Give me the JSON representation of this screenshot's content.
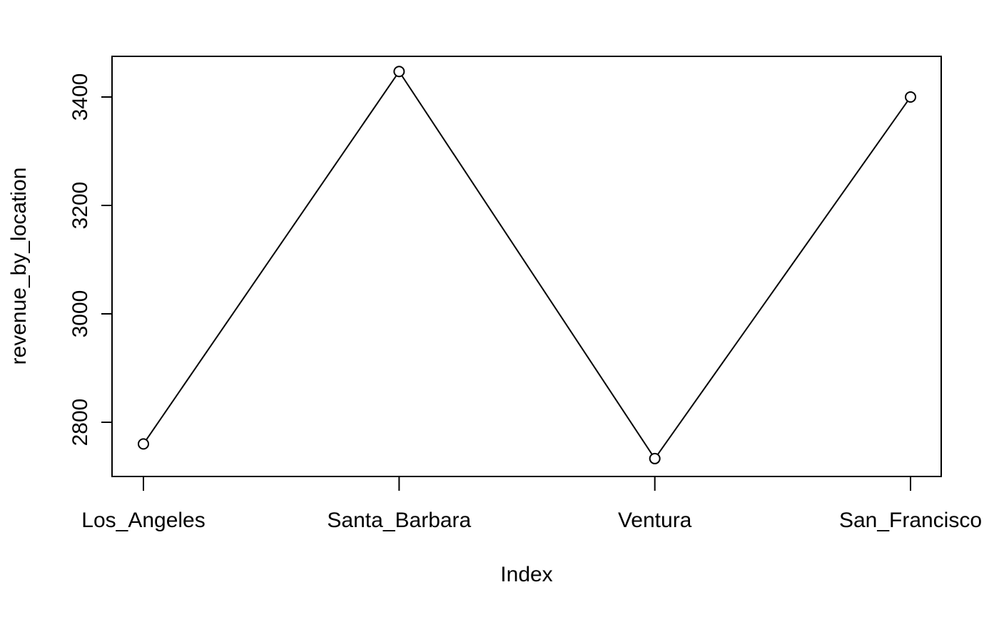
{
  "chart_data": {
    "type": "line",
    "title": "",
    "xlabel": "Index",
    "ylabel": "revenue_by_location",
    "categories": [
      "Los_Angeles",
      "Santa_Barbara",
      "Ventura",
      "San_Francisco"
    ],
    "series": [
      {
        "values": [
          2760,
          3447,
          2733,
          3400
        ]
      }
    ],
    "ylim": [
      2700,
      3475
    ],
    "yticks": [
      2800,
      3000,
      3200,
      3400
    ],
    "ytick_labels": [
      "2800",
      "3000",
      "3200",
      "3400"
    ],
    "markers": "open-circle",
    "grid": false,
    "legend": "none",
    "colors": {
      "line": "#000000",
      "background": "#ffffff"
    }
  }
}
